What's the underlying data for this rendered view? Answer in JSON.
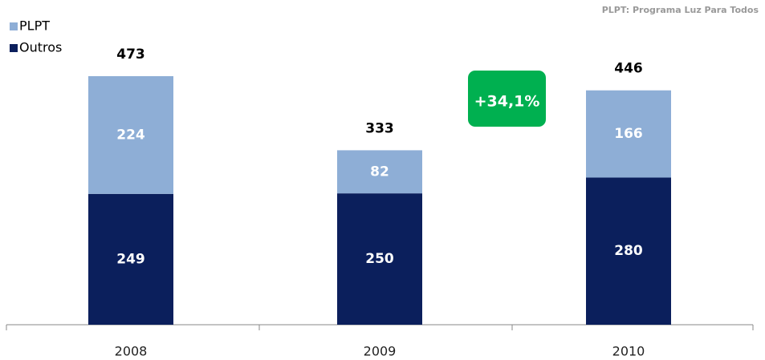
{
  "chart_data": {
    "type": "stacked_bar",
    "note": "PLPT: Programa Luz Para Todos",
    "categories": [
      "2008",
      "2009",
      "2010"
    ],
    "series": [
      {
        "name": "Outros",
        "color": "#0b1f5c",
        "values": [
          249,
          250,
          280
        ]
      },
      {
        "name": "PLPT",
        "color": "#8eaed6",
        "values": [
          224,
          82,
          166
        ]
      }
    ],
    "totals": [
      473,
      333,
      446
    ],
    "annotation": "+34,1%",
    "annotation_color": "#00b050",
    "legend": "top-left"
  }
}
